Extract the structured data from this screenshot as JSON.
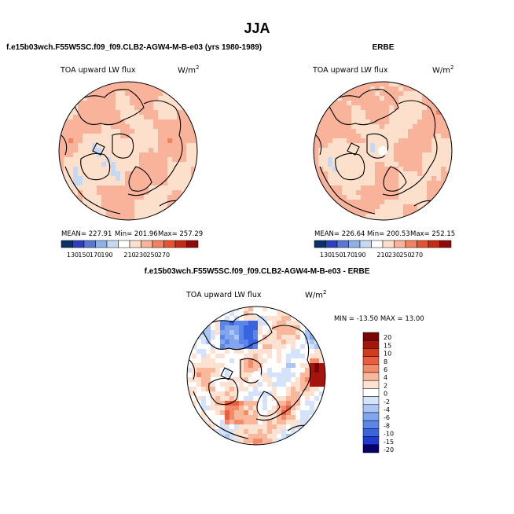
{
  "figure": {
    "season": "JJA",
    "variable": "TOA upward LW flux",
    "units": "W/m",
    "units_exponent": "2"
  },
  "colors": {
    "abs_scale": [
      "#08306b",
      "#2c3fbf",
      "#5a78d2",
      "#8fb1e6",
      "#c5d9f2",
      "#ffffff",
      "#fde0cc",
      "#f9b39a",
      "#f3835e",
      "#e5542d",
      "#c42b14",
      "#8e0b09"
    ],
    "diff_scale": [
      "#08006b",
      "#1e3ad0",
      "#3a63e0",
      "#5b86e8",
      "#82a6ee",
      "#abc6f4",
      "#d4e3f9",
      "#ffffff",
      "#fde2d2",
      "#f9b79c",
      "#f48a68",
      "#ea5e3f",
      "#d23a1c",
      "#a5150d",
      "#7a0707"
    ],
    "land_line": "#000000"
  },
  "chart_data": [
    {
      "type": "heatmap",
      "projection": "north-polar-stereographic",
      "title": "f.e15b03wch.F55W5SC.f09_f09.CLB2-AGW4-M-B-e03 (yrs 1980-1989)",
      "label": "TOA upward LW flux",
      "units": "W/m2",
      "stats": {
        "mean": "227.91",
        "min": "201.96",
        "max": "257.29"
      },
      "stats_text": {
        "mean": "MEAN= 227.91",
        "min": "Min= 201.96",
        "max": "Max= 257.29"
      },
      "colorbar_ticks": [
        "130",
        "150",
        "170",
        "190",
        "210",
        "230",
        "250",
        "270"
      ],
      "dominant_range": [
        210,
        250
      ]
    },
    {
      "type": "heatmap",
      "projection": "north-polar-stereographic",
      "title": "ERBE",
      "label": "TOA upward LW flux",
      "units": "W/m2",
      "stats": {
        "mean": "226.64",
        "min": "200.53",
        "max": "252.15"
      },
      "stats_text": {
        "mean": "MEAN= 226.64",
        "min": "Min= 200.53",
        "max": "Max= 252.15"
      },
      "colorbar_ticks": [
        "130",
        "150",
        "170",
        "190",
        "210",
        "230",
        "250",
        "270"
      ],
      "dominant_range": [
        210,
        250
      ],
      "missing_pole": true
    },
    {
      "type": "heatmap",
      "projection": "north-polar-stereographic",
      "title": "f.e15b03wch.F55W5SC.f09_f09.CLB2-AGW4-M-B-e03 - ERBE",
      "label": "TOA upward LW flux",
      "units": "W/m2",
      "min": "-13.50",
      "max": "13.00",
      "minmax_text": "MIN = -13.50 MAX =  13.00",
      "colorbar_ticks": [
        "20",
        "15",
        "10",
        "8",
        "6",
        "4",
        "2",
        "0",
        "-2",
        "-4",
        "-6",
        "-8",
        "-10",
        "-15",
        "-20"
      ],
      "missing_pole": true
    }
  ]
}
